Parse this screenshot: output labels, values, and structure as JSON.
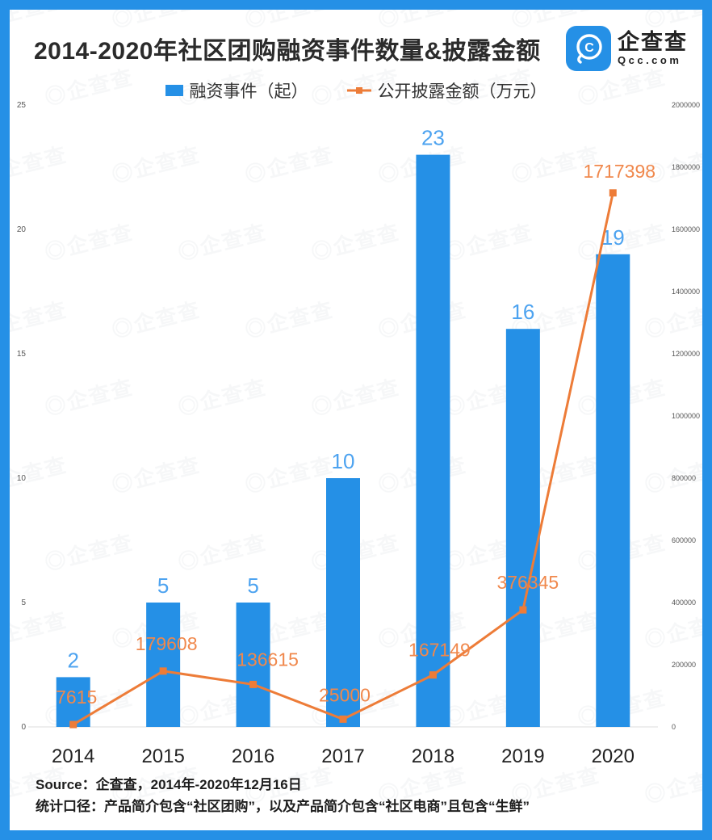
{
  "header": {
    "title": "2014-2020年社区团购融资事件数量&披露金额",
    "logo": {
      "brand": "企查查",
      "domain": "Qcc.com"
    }
  },
  "legend": [
    {
      "label": "融资事件（起）",
      "type": "bar",
      "color": "#2590e6"
    },
    {
      "label": "公开披露金额（万元）",
      "type": "line",
      "color": "#ed7c38"
    }
  ],
  "chart_data": {
    "type": "bar+line combo",
    "title": "2014-2020年社区团购融资事件数量&披露金额",
    "categories": [
      "2014",
      "2015",
      "2016",
      "2017",
      "2018",
      "2019",
      "2020"
    ],
    "series": [
      {
        "name": "融资事件（起）",
        "type": "bar",
        "axis": "left",
        "color": "#2590e6",
        "label_color": "#4da3f0",
        "values": [
          2,
          5,
          5,
          10,
          23,
          16,
          19
        ]
      },
      {
        "name": "公开披露金额（万元）",
        "type": "line",
        "axis": "right",
        "color": "#ed7c38",
        "label_color": "#f0884c",
        "values": [
          7615,
          179608,
          136615,
          25000,
          167149,
          376345,
          1717398
        ]
      }
    ],
    "left_axis": {
      "min": 0,
      "max": 25,
      "step": 5
    },
    "right_axis": {
      "min": 0,
      "max": 2000000,
      "step": 200000
    },
    "grid": false,
    "legend_position": "top"
  },
  "footer": {
    "source": "Source：企查查，2014年-2020年12月16日",
    "caliber": "统计口径：产品简介包含“社区团购”，以及产品简介包含“社区电商”且包含“生鲜”"
  },
  "watermark": {
    "glyph": "◎",
    "text": "企查查"
  },
  "colors": {
    "frame": "#2590e6",
    "bar": "#2590e6",
    "bar_label": "#4da3f0",
    "line": "#ed7c38",
    "line_label": "#f0884c",
    "axis_text": "#555555",
    "x_label": "#222222",
    "title_text": "#2b2b2b"
  }
}
